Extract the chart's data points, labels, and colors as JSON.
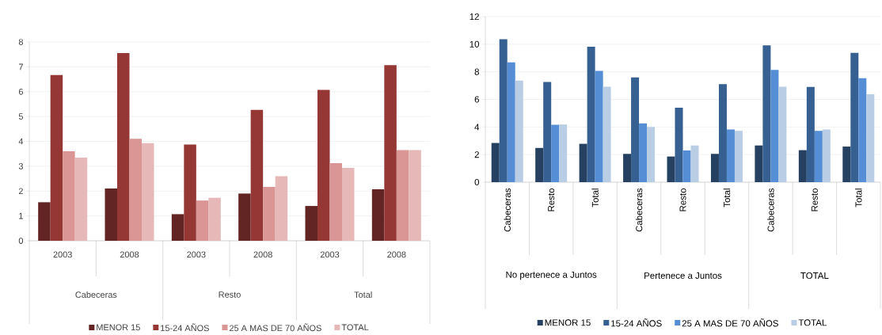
{
  "chart_data": [
    {
      "type": "bar",
      "categories": [
        "2003",
        "2008",
        "2003",
        "2008",
        "2003",
        "2008"
      ],
      "annotations": [
        "Cabeceras",
        "Resto",
        "Total"
      ],
      "ylim": [
        0,
        8
      ],
      "yticks": [
        0,
        1,
        2,
        3,
        4,
        5,
        6,
        7,
        8
      ],
      "grid": "y",
      "legend": "bottom",
      "series": [
        {
          "name": "MENOR 15",
          "color": "#632523",
          "values": [
            1.55,
            2.1,
            1.07,
            1.9,
            1.4,
            2.07
          ]
        },
        {
          "name": "15-24 AÑOS",
          "color": "#943735",
          "values": [
            6.67,
            7.55,
            3.87,
            5.27,
            6.07,
            7.07
          ]
        },
        {
          "name": "25 A MAS DE 70 AÑOS",
          "color": "#d99694",
          "values": [
            3.6,
            4.1,
            1.62,
            2.17,
            3.12,
            3.65
          ]
        },
        {
          "name": "TOTAL",
          "color": "#e6b9b8",
          "values": [
            3.35,
            3.93,
            1.73,
            2.6,
            2.93,
            3.65
          ]
        }
      ]
    },
    {
      "type": "bar",
      "categories": [
        "Cabeceras",
        "Resto",
        "Total",
        "Cabeceras",
        "Resto",
        "Total",
        "Cabeceras",
        "Resto",
        "Total"
      ],
      "annotations": [
        "No pertenece a Juntos",
        "Pertenece a Juntos",
        "TOTAL"
      ],
      "ylim": [
        0,
        12
      ],
      "yticks": [
        0,
        2,
        4,
        6,
        8,
        10,
        12
      ],
      "grid": "y",
      "legend": "bottom",
      "series": [
        {
          "name": "MENOR 15",
          "color": "#254061",
          "values": [
            2.84,
            2.48,
            2.78,
            2.05,
            1.86,
            2.05,
            2.66,
            2.32,
            2.58
          ]
        },
        {
          "name": "15-24 AÑOS",
          "color": "#366092",
          "values": [
            10.36,
            7.26,
            9.82,
            7.6,
            5.4,
            7.1,
            9.92,
            6.9,
            9.38
          ]
        },
        {
          "name": "25 A MAS DE 70 AÑOS",
          "color": "#558ed5",
          "values": [
            8.68,
            4.16,
            8.06,
            4.26,
            2.3,
            3.82,
            8.14,
            3.72,
            7.54
          ]
        },
        {
          "name": "TOTAL",
          "color": "#b9cde5",
          "values": [
            7.36,
            4.18,
            6.92,
            4.0,
            2.66,
            3.72,
            6.92,
            3.82,
            6.38
          ]
        }
      ]
    }
  ]
}
